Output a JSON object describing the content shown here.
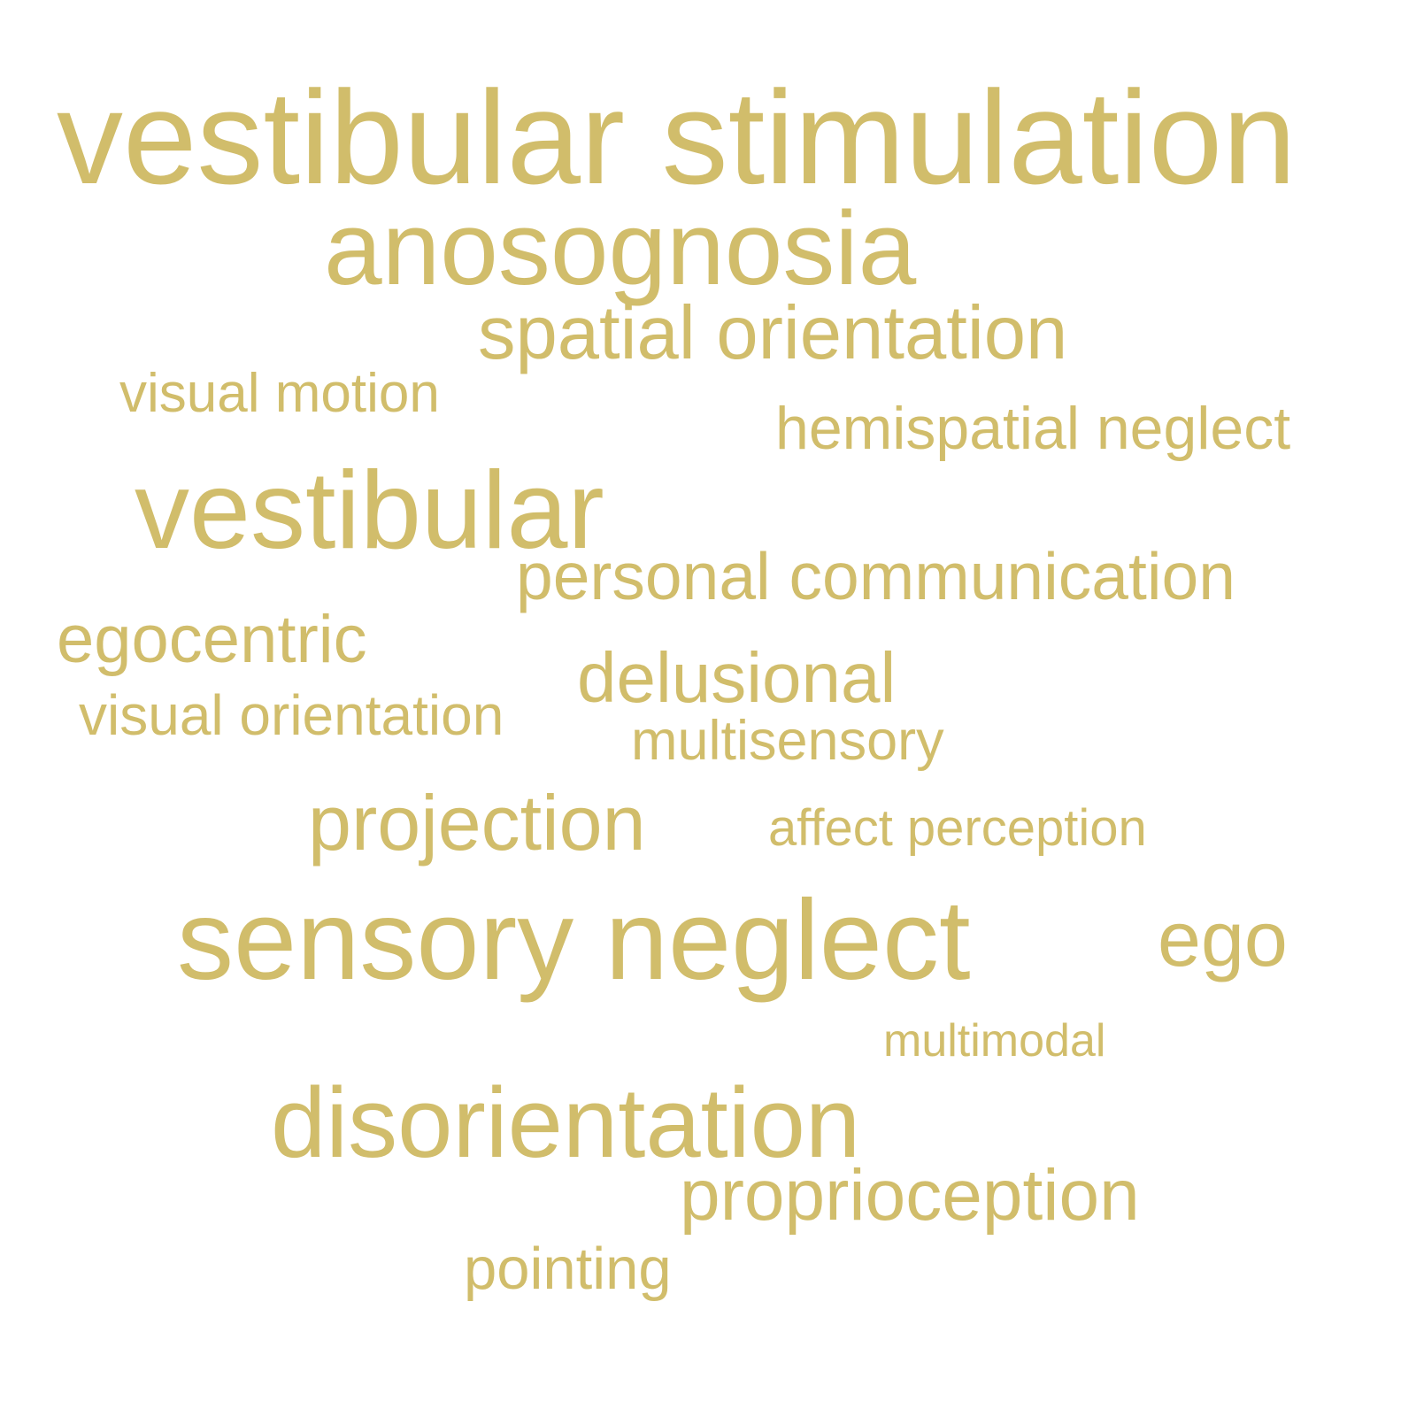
{
  "theme": {
    "word_color": "#d1bd6b",
    "background": "#ffffff"
  },
  "words": [
    "vestibular stimulation",
    "anosognosia",
    "spatial orientation",
    "visual motion",
    "hemispatial neglect",
    "vestibular",
    "personal communication",
    "egocentric",
    "delusional",
    "visual orientation",
    "multisensory",
    "projection",
    "affect perception",
    "sensory neglect",
    "ego",
    "multimodal",
    "disorientation",
    "proprioception",
    "pointing"
  ]
}
